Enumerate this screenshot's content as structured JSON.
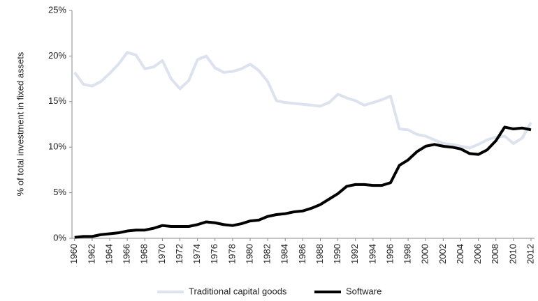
{
  "chart_data": {
    "type": "line",
    "y_label": "% of total investment in fixed assets",
    "x": [
      1960,
      1961,
      1962,
      1963,
      1964,
      1965,
      1966,
      1967,
      1968,
      1969,
      1970,
      1971,
      1972,
      1973,
      1974,
      1975,
      1976,
      1977,
      1978,
      1979,
      1980,
      1981,
      1982,
      1983,
      1984,
      1985,
      1986,
      1987,
      1988,
      1989,
      1990,
      1991,
      1992,
      1993,
      1994,
      1995,
      1996,
      1997,
      1998,
      1999,
      2000,
      2001,
      2002,
      2003,
      2004,
      2005,
      2006,
      2007,
      2008,
      2009,
      2010,
      2011,
      2012
    ],
    "series": [
      {
        "name": "Traditional capital goods",
        "color": "#dde3ee",
        "values": [
          18.2,
          16.9,
          16.7,
          17.2,
          18.1,
          19.1,
          20.4,
          20.1,
          18.6,
          18.8,
          19.5,
          17.5,
          16.4,
          17.3,
          19.6,
          20.0,
          18.7,
          18.2,
          18.3,
          18.6,
          19.1,
          18.4,
          17.2,
          15.1,
          14.9,
          14.8,
          14.7,
          14.6,
          14.5,
          14.9,
          15.8,
          15.4,
          15.1,
          14.6,
          14.9,
          15.2,
          15.6,
          12.0,
          11.9,
          11.4,
          11.2,
          10.8,
          10.4,
          10.3,
          10.1,
          9.9,
          10.3,
          10.8,
          11.1,
          11.2,
          10.4,
          11.0,
          12.7
        ]
      },
      {
        "name": "Software",
        "color": "#000000",
        "values": [
          0.1,
          0.2,
          0.2,
          0.4,
          0.5,
          0.6,
          0.8,
          0.9,
          0.9,
          1.1,
          1.4,
          1.3,
          1.3,
          1.3,
          1.5,
          1.8,
          1.7,
          1.5,
          1.4,
          1.6,
          1.9,
          2.0,
          2.4,
          2.6,
          2.7,
          2.9,
          3.0,
          3.3,
          3.7,
          4.3,
          4.9,
          5.7,
          5.9,
          5.9,
          5.8,
          5.8,
          6.1,
          8.0,
          8.6,
          9.5,
          10.1,
          10.3,
          10.1,
          10.0,
          9.8,
          9.3,
          9.2,
          9.7,
          10.7,
          12.2,
          12.0,
          12.1,
          11.9
        ]
      }
    ],
    "xlim": [
      1959.7,
      2012.4
    ],
    "xticks": [
      1960,
      1962,
      1964,
      1966,
      1968,
      1970,
      1972,
      1974,
      1976,
      1978,
      1980,
      1982,
      1984,
      1986,
      1988,
      1990,
      1992,
      1994,
      1996,
      1998,
      2000,
      2002,
      2004,
      2006,
      2008,
      2010,
      2012
    ],
    "ylim": [
      0,
      25
    ],
    "yticks": [
      {
        "value": 0,
        "label": "0%"
      },
      {
        "value": 5,
        "label": "5%"
      },
      {
        "value": 10,
        "label": "10%"
      },
      {
        "value": 15,
        "label": "15%"
      },
      {
        "value": 20,
        "label": "20%"
      },
      {
        "value": 25,
        "label": "25%"
      }
    ],
    "legend": "bottom"
  }
}
